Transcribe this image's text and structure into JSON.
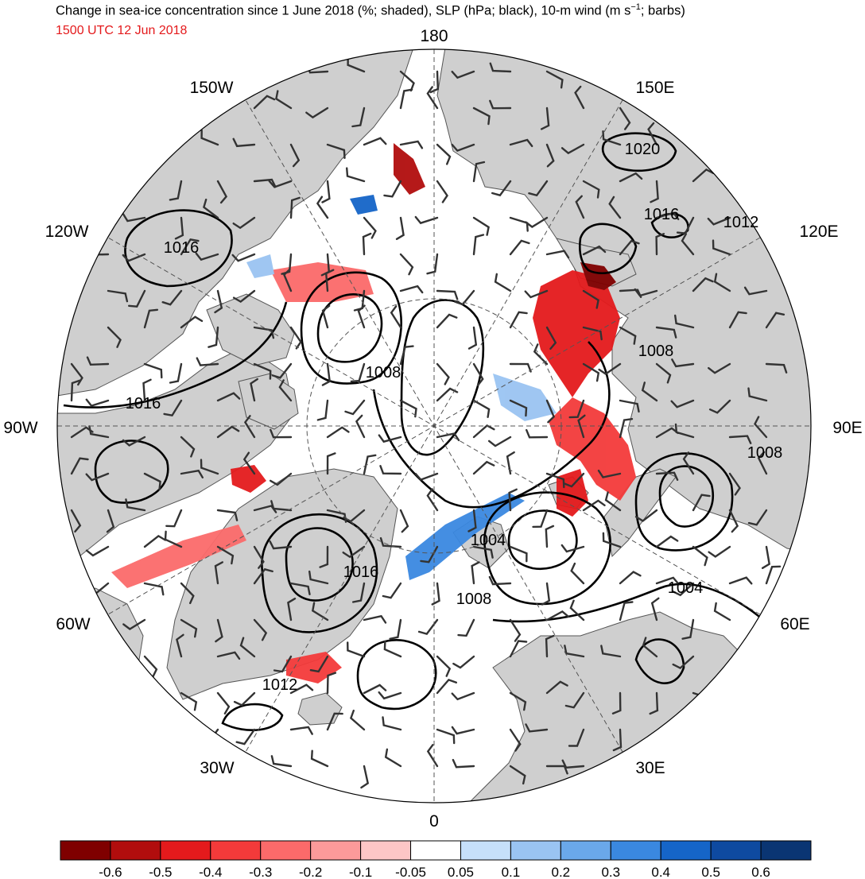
{
  "header": {
    "title": "Change in sea-ice concentration since 1 June 2018 (%; shaded), SLP (hPa; black), 10-m wind (m s",
    "title_sup": "−1",
    "title_tail": "; barbs)",
    "valid_time": "1500 UTC 12 Jun 2018"
  },
  "map": {
    "projection": "north-polar-stereographic",
    "longitude_labels": {
      "lon_180": "180",
      "lon_150E": "150E",
      "lon_120E": "120E",
      "lon_90E": "90E",
      "lon_60E": "60E",
      "lon_30E": "30E",
      "lon_0": "0",
      "lon_30W": "30W",
      "lon_60W": "60W",
      "lon_90W": "90W",
      "lon_120W": "120W",
      "lon_150W": "150W"
    },
    "slp_contour_labels": {
      "c1": "1020",
      "c2": "1016",
      "c3": "1012",
      "c4": "1016",
      "c5": "1008",
      "c6": "1008",
      "c7": "1016",
      "c8": "1008",
      "c9": "1004",
      "c10": "1016",
      "c11": "1008",
      "c12": "1004",
      "c13": "1012"
    },
    "colors": {
      "land": "#cfcfcf",
      "ocean": "#ffffff",
      "contour": "#000000",
      "barb": "#333333"
    }
  },
  "colorbar": {
    "bins": [
      {
        "color": "#7f0000"
      },
      {
        "color": "#b10d0d"
      },
      {
        "color": "#e41a1c"
      },
      {
        "color": "#f33a3a"
      },
      {
        "color": "#fb6a6a"
      },
      {
        "color": "#fc9a9a"
      },
      {
        "color": "#fdc6c6"
      },
      {
        "color": "#ffffff"
      },
      {
        "color": "#c6e0fa"
      },
      {
        "color": "#9ac4f2"
      },
      {
        "color": "#6aa8ea"
      },
      {
        "color": "#3a88e0"
      },
      {
        "color": "#1565c8"
      },
      {
        "color": "#0e4aa0"
      },
      {
        "color": "#0a3573"
      }
    ],
    "tick_labels": [
      "-0.6",
      "-0.5",
      "-0.4",
      "-0.3",
      "-0.2",
      "-0.1",
      "-0.05",
      "0.05",
      "0.1",
      "0.2",
      "0.3",
      "0.4",
      "0.5",
      "0.6"
    ]
  }
}
